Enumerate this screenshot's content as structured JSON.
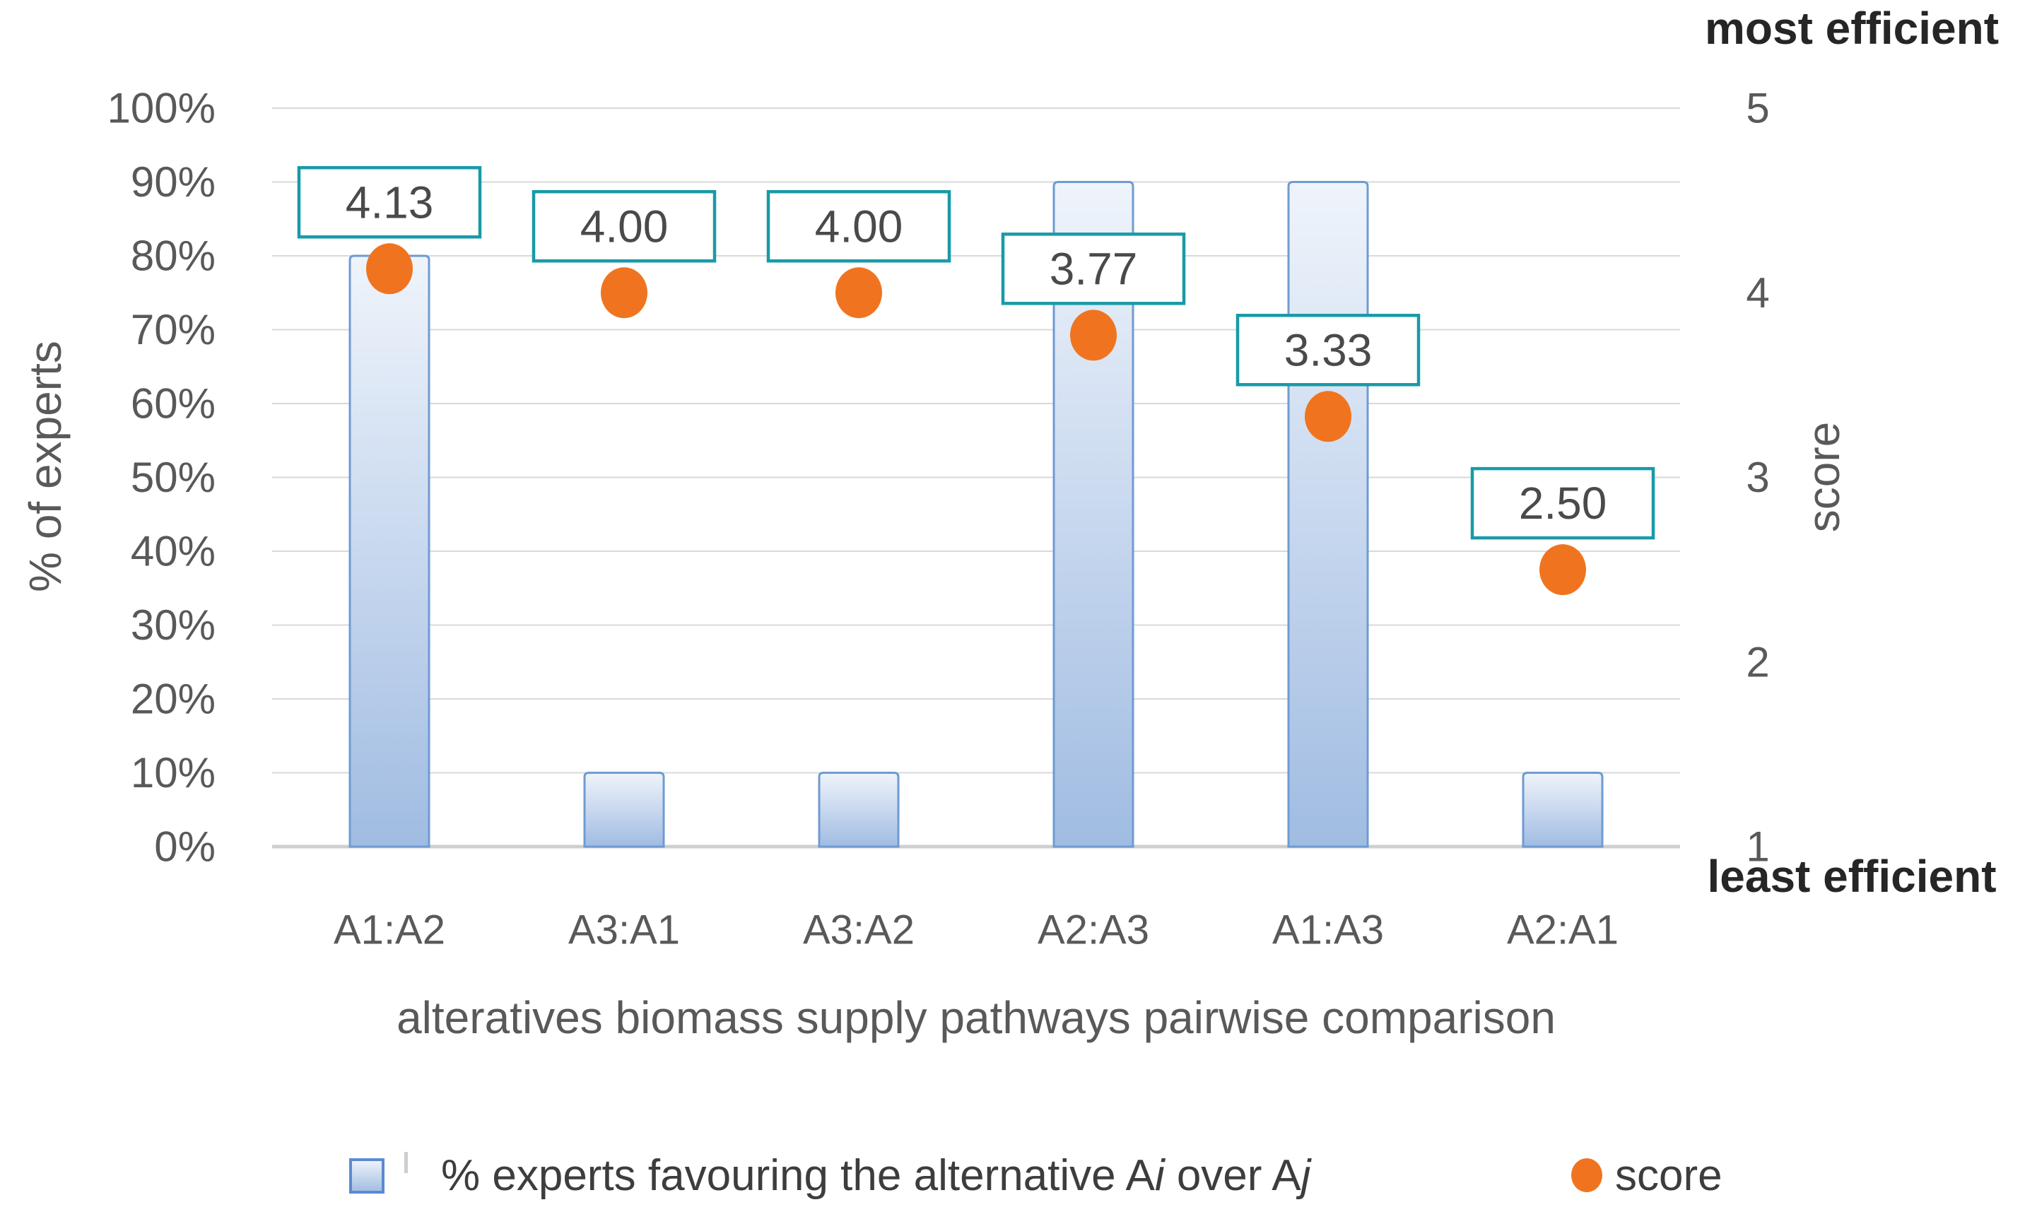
{
  "figure": {
    "top_right_annotation": "most efficient",
    "bottom_right_annotation": "least efficient"
  },
  "legend": {
    "bars_label": "% experts favouring the alternative Ai over Aj",
    "bars_label_parts": {
      "t1": "% experts favouring the alternative A",
      "i1": "i",
      "t2": " over A",
      "i2": "j"
    },
    "score_label": "score"
  },
  "colors": {
    "bar_border": "#6f9bd2",
    "bar_fill_top": "#eff4fb",
    "bar_fill_mid": "#ccdbf0",
    "bar_fill_bottom": "#a0bce2",
    "score_dot": "#f0741f",
    "label_box_border": "#189aa8",
    "label_box_fill": "#ffffff",
    "gridline": "#d9d9d9",
    "axis_line": "#cfcfcf",
    "axis_text": "#595959",
    "annotation_text": "#262626"
  },
  "chart_data": {
    "type": "combo",
    "categories": [
      "A1:A2",
      "A3:A1",
      "A3:A2",
      "A2:A3",
      "A1:A3",
      "A2:A1"
    ],
    "series": [
      {
        "name": "% experts favouring the alternative Ai over Aj",
        "chart": "column",
        "axis": "left",
        "values_percent": [
          80,
          10,
          10,
          90,
          90,
          10
        ]
      },
      {
        "name": "score",
        "chart": "scatter",
        "axis": "right",
        "values": [
          4.13,
          4.0,
          4.0,
          3.77,
          3.33,
          2.5
        ],
        "data_labels": [
          "4.13",
          "4.00",
          "4.00",
          "3.77",
          "3.33",
          "2.50"
        ]
      }
    ],
    "x_axis": {
      "title": "alteratives biomass supply pathways pairwise comparison"
    },
    "left_axis": {
      "title": "% of experts",
      "min": 0,
      "max": 100,
      "tick_labels": [
        "100%",
        "90%",
        "80%",
        "70%",
        "60%",
        "50%",
        "40%",
        "30%",
        "20%",
        "10%",
        "0%"
      ]
    },
    "right_axis": {
      "title": "score",
      "min": 1,
      "max": 5,
      "tick_labels": [
        "5",
        "4",
        "3",
        "2",
        "1"
      ],
      "top_annotation": "most efficient",
      "bottom_annotation": "least efficient"
    },
    "grid": "horizontal",
    "legend_position": "bottom"
  }
}
